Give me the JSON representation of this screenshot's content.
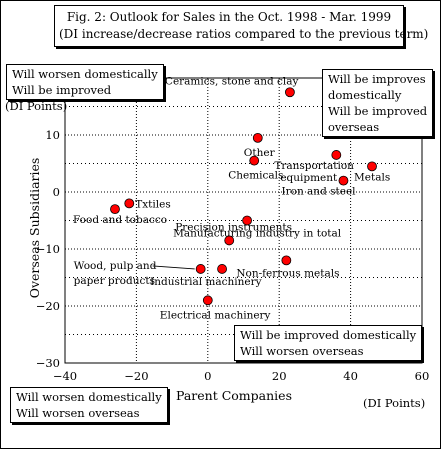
{
  "chart_data": {
    "type": "scatter",
    "title": "Fig. 2: Outlook for Sales in the Oct. 1998 - Mar. 1999",
    "subtitle": "(DI increase/decrease ratios compared to the previous term)",
    "xlabel": "Parent Companies",
    "ylabel": "Overseas Subsidiaries",
    "x_unit": "(DI Points)",
    "y_unit": "(DI Points)",
    "xlim": [
      -40,
      60
    ],
    "ylim": [
      -30,
      20
    ],
    "x_ticks": [
      -40,
      -20,
      0,
      20,
      40,
      60
    ],
    "y_ticks": [
      -30,
      -20,
      -10,
      0,
      10
    ],
    "x_tick_labels": [
      "−40",
      "−20",
      "0",
      "20",
      "40",
      "60"
    ],
    "y_tick_labels": [
      "−30",
      "−20",
      "−10",
      "0",
      "10"
    ],
    "grid": true,
    "marker_color": "#ff0000",
    "points": [
      {
        "label": "Ceramics, stone and clay",
        "x": 23,
        "y": 17.5
      },
      {
        "label": "Other",
        "x": 14,
        "y": 9.5
      },
      {
        "label": "Chemicals",
        "x": 13,
        "y": 5.5
      },
      {
        "label": "Transportation equipment",
        "x": 36,
        "y": 6.5
      },
      {
        "label": "Metals",
        "x": 46,
        "y": 4.5
      },
      {
        "label": "Iron and steel",
        "x": 38,
        "y": 2
      },
      {
        "label": "Txtiles",
        "x": -22,
        "y": -2
      },
      {
        "label": "Food and tobacco",
        "x": -26,
        "y": -3
      },
      {
        "label": "Manufacturing industry in total",
        "x": 11,
        "y": -5
      },
      {
        "label": "Precision instruments",
        "x": 6,
        "y": -8.5
      },
      {
        "label": "Non-ferrous metals",
        "x": 22,
        "y": -12
      },
      {
        "label": "Wood, pulp and paper products",
        "x": -2,
        "y": -13.5
      },
      {
        "label": "Industrial machinery",
        "x": 4,
        "y": -13.5
      },
      {
        "label": "Electrical machinery",
        "x": 0,
        "y": -19
      }
    ]
  },
  "quadrants": {
    "top_left": [
      "Will worsen domestically",
      "Will be improved"
    ],
    "top_right": [
      "Will be improves",
      "domestically",
      "Will be improved",
      "overseas"
    ],
    "bottom_right": [
      "Will be improved domestically",
      "Will worsen overseas"
    ],
    "bottom_left": [
      "Will worsen domestically",
      "Will worsen overseas"
    ]
  }
}
